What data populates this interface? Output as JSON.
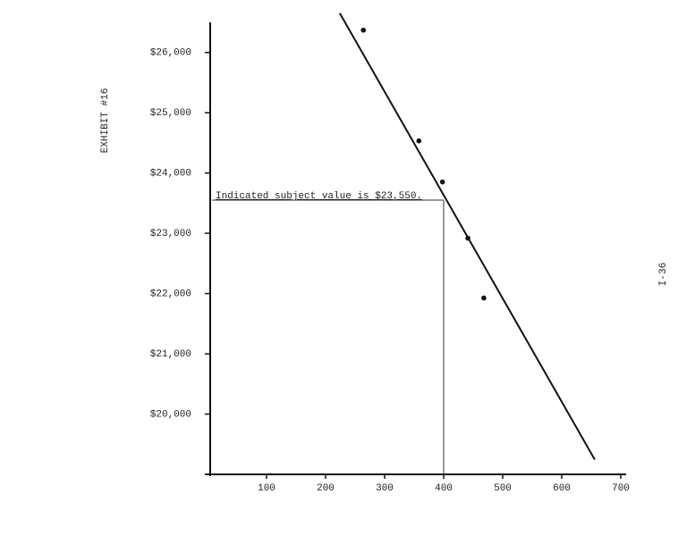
{
  "page_label": "I-36",
  "chart_data": {
    "type": "scatter",
    "subtitle": "EXHIBIT #16",
    "annotation": "Indicated subject value is $23,550.",
    "subject": {
      "x": 400,
      "y": 23550
    },
    "x": [
      264,
      358,
      398,
      441,
      468
    ],
    "values": [
      26370,
      24533,
      23852,
      22919,
      21926
    ],
    "color": "#111111",
    "trendline": {
      "x": [
        224,
        656
      ],
      "y": [
        26652,
        19244
      ]
    },
    "xlim": [
      0,
      700
    ],
    "xticks": [
      100,
      200,
      300,
      400,
      500,
      600,
      700
    ],
    "ylim": [
      19000,
      26500
    ],
    "yticks": [
      {
        "value": 20000,
        "label": "$20,000"
      },
      {
        "value": 21000,
        "label": "$21,000"
      },
      {
        "value": 22000,
        "label": "$22,000"
      },
      {
        "value": 23000,
        "label": "$23,000"
      },
      {
        "value": 24000,
        "label": "$24,000"
      },
      {
        "value": 25000,
        "label": "$25,000"
      },
      {
        "value": 26000,
        "label": "$26,000"
      }
    ]
  }
}
